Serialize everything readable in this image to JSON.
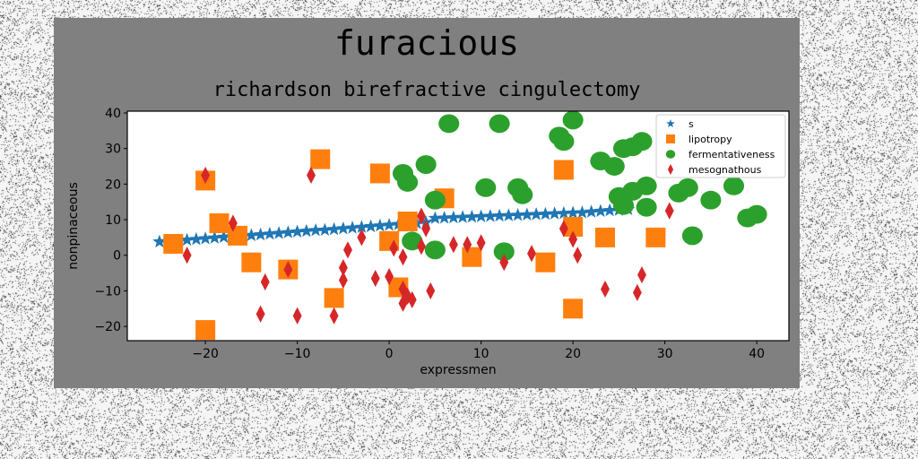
{
  "chart_data": {
    "type": "scatter",
    "title": "furacious",
    "subtitle": "richardson birefractive cingulectomy",
    "xlabel": "expressmen",
    "ylabel": "nonpinaceous",
    "xlim": [
      -28.5,
      43.5
    ],
    "ylim": [
      -24,
      40.5
    ],
    "xticks": [
      -20,
      -10,
      0,
      10,
      20,
      30,
      40
    ],
    "yticks": [
      -20,
      -10,
      0,
      10,
      20,
      30,
      40
    ],
    "xtick_labels": [
      "−20",
      "−10",
      "0",
      "10",
      "20",
      "30",
      "40"
    ],
    "ytick_labels": [
      "−20",
      "−10",
      "0",
      "10",
      "20",
      "30",
      "40"
    ],
    "grid": false,
    "legend_position": "top-right",
    "series": [
      {
        "name": "s",
        "marker": "star",
        "color": "#1f77b4",
        "points": [
          [
            -25.0,
            3.8
          ],
          [
            -24.0,
            3.9
          ],
          [
            -23.0,
            4.1
          ],
          [
            -22.0,
            4.3
          ],
          [
            -21.0,
            4.5
          ],
          [
            -20.0,
            4.7
          ],
          [
            -19.0,
            4.9
          ],
          [
            -18.0,
            5.1
          ],
          [
            -17.0,
            5.3
          ],
          [
            -16.0,
            5.4
          ],
          [
            -15.0,
            5.6
          ],
          [
            -14.0,
            5.8
          ],
          [
            -13.0,
            6.0
          ],
          [
            -12.0,
            6.2
          ],
          [
            -11.0,
            6.4
          ],
          [
            -10.0,
            6.6
          ],
          [
            -9.0,
            6.8
          ],
          [
            -8.0,
            7.0
          ],
          [
            -7.0,
            7.1
          ],
          [
            -6.0,
            7.3
          ],
          [
            -5.0,
            7.5
          ],
          [
            -4.0,
            7.7
          ],
          [
            -3.0,
            7.9
          ],
          [
            -2.0,
            8.1
          ],
          [
            -1.0,
            8.3
          ],
          [
            0.0,
            8.5
          ],
          [
            1.0,
            8.7
          ],
          [
            2.0,
            8.8
          ],
          [
            3.0,
            9.0
          ],
          [
            4.0,
            9.2
          ],
          [
            5.0,
            10.4
          ],
          [
            6.0,
            10.5
          ],
          [
            7.0,
            10.6
          ],
          [
            8.0,
            10.7
          ],
          [
            9.0,
            10.8
          ],
          [
            10.0,
            10.9
          ],
          [
            11.0,
            11.0
          ],
          [
            12.0,
            11.1
          ],
          [
            13.0,
            11.2
          ],
          [
            14.0,
            11.3
          ],
          [
            15.0,
            11.4
          ],
          [
            16.0,
            11.5
          ],
          [
            17.0,
            11.6
          ],
          [
            18.0,
            11.7
          ],
          [
            19.0,
            11.8
          ],
          [
            20.0,
            11.9
          ],
          [
            21.0,
            12.0
          ],
          [
            22.0,
            12.2
          ],
          [
            23.0,
            12.4
          ],
          [
            24.0,
            12.6
          ],
          [
            25.0,
            12.7
          ],
          [
            26.0,
            12.9
          ]
        ]
      },
      {
        "name": "lipotropy",
        "marker": "square",
        "color": "#ff7f0e",
        "points": [
          [
            -23.5,
            3.2
          ],
          [
            -20.0,
            21.0
          ],
          [
            -18.5,
            9.0
          ],
          [
            -16.5,
            5.5
          ],
          [
            -15.0,
            -2.0
          ],
          [
            -11.0,
            -4.0
          ],
          [
            -7.5,
            27.0
          ],
          [
            -6.0,
            -12.0
          ],
          [
            -1.0,
            23.0
          ],
          [
            0.0,
            4.0
          ],
          [
            1.0,
            -9.0
          ],
          [
            2.0,
            9.5
          ],
          [
            6.0,
            16.0
          ],
          [
            9.0,
            -0.5
          ],
          [
            17.0,
            -2.0
          ],
          [
            19.0,
            24.0
          ],
          [
            20.0,
            8.0
          ],
          [
            20.0,
            -15.0
          ],
          [
            23.5,
            5.0
          ],
          [
            29.0,
            5.0
          ],
          [
            -20.0,
            -21.0
          ]
        ]
      },
      {
        "name": "fermentativeness",
        "marker": "circle",
        "color": "#2ca02c",
        "points": [
          [
            6.5,
            37.0
          ],
          [
            12.0,
            37.0
          ],
          [
            18.5,
            33.5
          ],
          [
            19.0,
            32.0
          ],
          [
            20.0,
            38.0
          ],
          [
            1.5,
            23.0
          ],
          [
            2.0,
            20.5
          ],
          [
            4.0,
            25.5
          ],
          [
            5.0,
            15.5
          ],
          [
            2.5,
            4.0
          ],
          [
            5.0,
            1.5
          ],
          [
            10.5,
            19.0
          ],
          [
            14.0,
            19.0
          ],
          [
            14.5,
            17.0
          ],
          [
            12.5,
            1.0
          ],
          [
            23.0,
            26.5
          ],
          [
            24.5,
            25.0
          ],
          [
            25.5,
            30.0
          ],
          [
            26.5,
            30.5
          ],
          [
            27.5,
            32.0
          ],
          [
            25.0,
            16.5
          ],
          [
            26.5,
            18.0
          ],
          [
            28.0,
            19.5
          ],
          [
            25.5,
            14.0
          ],
          [
            28.0,
            13.5
          ],
          [
            31.5,
            17.5
          ],
          [
            32.5,
            19.0
          ],
          [
            33.0,
            5.5
          ],
          [
            35.0,
            15.5
          ],
          [
            37.5,
            19.5
          ],
          [
            39.0,
            10.5
          ],
          [
            40.0,
            11.5
          ]
        ]
      },
      {
        "name": "mesognathous",
        "marker": "diamond",
        "color": "#d62728",
        "points": [
          [
            -20.0,
            22.5
          ],
          [
            -22.0,
            0.0
          ],
          [
            -17.0,
            9.0
          ],
          [
            -13.5,
            -7.5
          ],
          [
            -14.0,
            -16.5
          ],
          [
            -11.0,
            -4.0
          ],
          [
            -10.0,
            -17.0
          ],
          [
            -8.5,
            22.5
          ],
          [
            -6.0,
            -17.0
          ],
          [
            -5.0,
            -3.5
          ],
          [
            -5.0,
            -7.0
          ],
          [
            -4.5,
            1.5
          ],
          [
            -3.0,
            5.0
          ],
          [
            -1.5,
            -6.5
          ],
          [
            0.0,
            -6.0
          ],
          [
            0.5,
            2.0
          ],
          [
            1.5,
            -9.5
          ],
          [
            1.5,
            -13.5
          ],
          [
            2.0,
            -11.5
          ],
          [
            2.5,
            -12.5
          ],
          [
            1.5,
            -0.5
          ],
          [
            3.5,
            2.5
          ],
          [
            3.5,
            11.0
          ],
          [
            4.0,
            7.5
          ],
          [
            4.5,
            -10.0
          ],
          [
            7.0,
            3.0
          ],
          [
            8.5,
            3.0
          ],
          [
            10.0,
            3.5
          ],
          [
            12.5,
            -2.0
          ],
          [
            15.5,
            0.5
          ],
          [
            19.0,
            7.5
          ],
          [
            20.0,
            4.5
          ],
          [
            20.5,
            0.0
          ],
          [
            23.5,
            -9.5
          ],
          [
            27.0,
            -10.5
          ],
          [
            27.5,
            -5.5
          ],
          [
            30.5,
            12.5
          ]
        ]
      }
    ]
  }
}
